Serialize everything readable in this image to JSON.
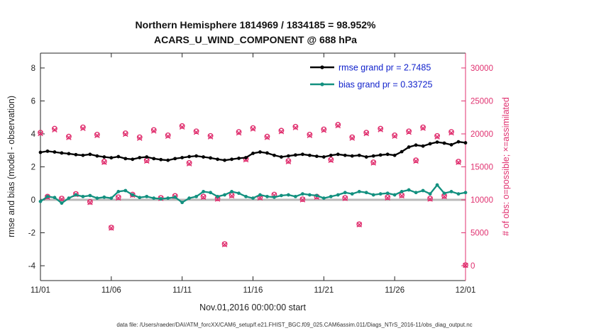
{
  "title": {
    "line1": "Northern Hemisphere 1814969 / 1834185 = 98.952%",
    "line2": "ACARS_U_WIND_COMPONENT @ 688 hPa"
  },
  "legend": {
    "rmse": "rmse grand pr = 2.7485",
    "bias": "bias grand pr = 0.33725"
  },
  "colors": {
    "rmse": "#000000",
    "bias": "#12907f",
    "obs": "#e0306f",
    "zero_line": "#b9b9b9",
    "axis": "#262626",
    "legend_text": "#1122cc"
  },
  "footer": "data file: /Users/raeder/DAI/ATM_forcXX/CAM6_setup/f.e21.FHIST_BGC.f09_025.CAM6assim.011/Diags_NTrS_2016-11/obs_diag_output.nc",
  "chart_data": {
    "type": "line",
    "title": "Northern Hemisphere 1814969 / 1834185 = 98.952%",
    "subtitle": "ACARS_U_WIND_COMPONENT @ 688 hPa",
    "xlabel": "Nov.01,2016 00:00:00 start",
    "x_unit": "days since 2016-11-01 00:00:00",
    "stats": {
      "rmse_grand_pr": 2.7485,
      "bias_grand_pr": 0.33725
    },
    "x_axis": {
      "lim_days": [
        0,
        30
      ],
      "tick_values_days": [
        0,
        5,
        10,
        15,
        20,
        25,
        30
      ],
      "tick_labels": [
        "11/01",
        "11/06",
        "11/11",
        "11/16",
        "11/21",
        "11/26",
        "12/01"
      ]
    },
    "left_axis": {
      "label": "rmse and bias (model - observation)",
      "ticks": [
        -4,
        -2,
        0,
        2,
        4,
        6,
        8
      ],
      "lim": [
        -4.9,
        8.9
      ]
    },
    "right_axis": {
      "label": "# of obs: o=possible; ×=assimilated",
      "ticks": [
        0,
        5000,
        10000,
        15000,
        20000,
        25000,
        30000
      ],
      "lim": [
        -2250,
        32250
      ],
      "mapping_note": "right count r maps to left units v = r/2500 - 4"
    },
    "x": [
      0,
      0.5,
      1,
      1.5,
      2,
      2.5,
      3,
      3.5,
      4,
      4.5,
      5,
      5.5,
      6,
      6.5,
      7,
      7.5,
      8,
      8.5,
      9,
      9.5,
      10,
      10.5,
      11,
      11.5,
      12,
      12.5,
      13,
      13.5,
      14,
      14.5,
      15,
      15.5,
      16,
      16.5,
      17,
      17.5,
      18,
      18.5,
      19,
      19.5,
      20,
      20.5,
      21,
      21.5,
      22,
      22.5,
      23,
      23.5,
      24,
      24.5,
      25,
      25.5,
      26,
      26.5,
      27,
      27.5,
      28,
      28.5,
      29,
      29.5,
      30
    ],
    "series": [
      {
        "name": "possible",
        "axis": "right",
        "marker": "o",
        "line": false,
        "color": "#e0306f",
        "values": [
          20200,
          10500,
          20800,
          10200,
          19600,
          10900,
          21000,
          9700,
          19900,
          15800,
          5800,
          10400,
          20100,
          10800,
          19500,
          16000,
          20600,
          10300,
          19800,
          10600,
          21200,
          15600,
          20400,
          10500,
          19700,
          10200,
          3300,
          10700,
          20300,
          16200,
          20900,
          10400,
          19600,
          10800,
          20500,
          15900,
          21100,
          10100,
          19900,
          10500,
          20700,
          16100,
          21400,
          10300,
          19500,
          6300,
          20200,
          15700,
          20800,
          10400,
          19800,
          10700,
          20400,
          16000,
          21000,
          10200,
          19700,
          10600,
          20300,
          15800,
          100
        ]
      },
      {
        "name": "assimilated",
        "axis": "right",
        "marker": "x",
        "line": false,
        "color": "#e0306f",
        "values": [
          20050,
          10380,
          20620,
          10110,
          19450,
          10800,
          20840,
          9600,
          19760,
          15690,
          5720,
          10290,
          19950,
          10700,
          19340,
          15880,
          20450,
          10210,
          19650,
          10500,
          21050,
          15480,
          20260,
          10400,
          19560,
          10110,
          3210,
          10600,
          20150,
          16080,
          20760,
          10300,
          19460,
          10700,
          20350,
          15790,
          20950,
          10010,
          19760,
          10400,
          20550,
          15990,
          21250,
          10210,
          19360,
          6230,
          20060,
          15590,
          20650,
          10300,
          19650,
          10610,
          20260,
          15880,
          20860,
          10110,
          19560,
          10510,
          20160,
          15690,
          60
        ]
      },
      {
        "name": "bias",
        "axis": "left",
        "marker": "filled-dot",
        "line": true,
        "color": "#12907f",
        "values": [
          -0.1,
          0.2,
          0.14,
          -0.2,
          0.1,
          0.3,
          0.2,
          0.26,
          0.1,
          0.16,
          0.1,
          0.5,
          0.56,
          0.3,
          0.14,
          0.2,
          0.1,
          0.06,
          0.1,
          0.16,
          -0.16,
          0.1,
          0.2,
          0.5,
          0.44,
          0.2,
          0.3,
          0.5,
          0.4,
          0.2,
          0.1,
          0.3,
          0.2,
          0.16,
          0.26,
          0.3,
          0.2,
          0.36,
          0.3,
          0.26,
          0.1,
          0.2,
          0.3,
          0.44,
          0.36,
          0.5,
          0.44,
          0.3,
          0.36,
          0.4,
          0.3,
          0.5,
          0.6,
          0.44,
          0.56,
          0.36,
          0.9,
          0.4,
          0.5,
          0.36,
          0.44
        ]
      },
      {
        "name": "rmse",
        "axis": "left",
        "marker": "filled-dot",
        "line": true,
        "color": "#000000",
        "values": [
          2.88,
          2.95,
          2.9,
          2.84,
          2.8,
          2.74,
          2.7,
          2.76,
          2.66,
          2.6,
          2.55,
          2.62,
          2.5,
          2.46,
          2.56,
          2.6,
          2.5,
          2.44,
          2.4,
          2.5,
          2.56,
          2.62,
          2.66,
          2.6,
          2.54,
          2.46,
          2.4,
          2.46,
          2.52,
          2.56,
          2.82,
          2.9,
          2.84,
          2.7,
          2.6,
          2.66,
          2.72,
          2.76,
          2.7,
          2.64,
          2.6,
          2.7,
          2.76,
          2.7,
          2.66,
          2.7,
          2.6,
          2.66,
          2.72,
          2.76,
          2.7,
          2.92,
          3.2,
          3.32,
          3.26,
          3.4,
          3.5,
          3.44,
          3.34,
          3.52,
          3.46
        ]
      }
    ]
  }
}
